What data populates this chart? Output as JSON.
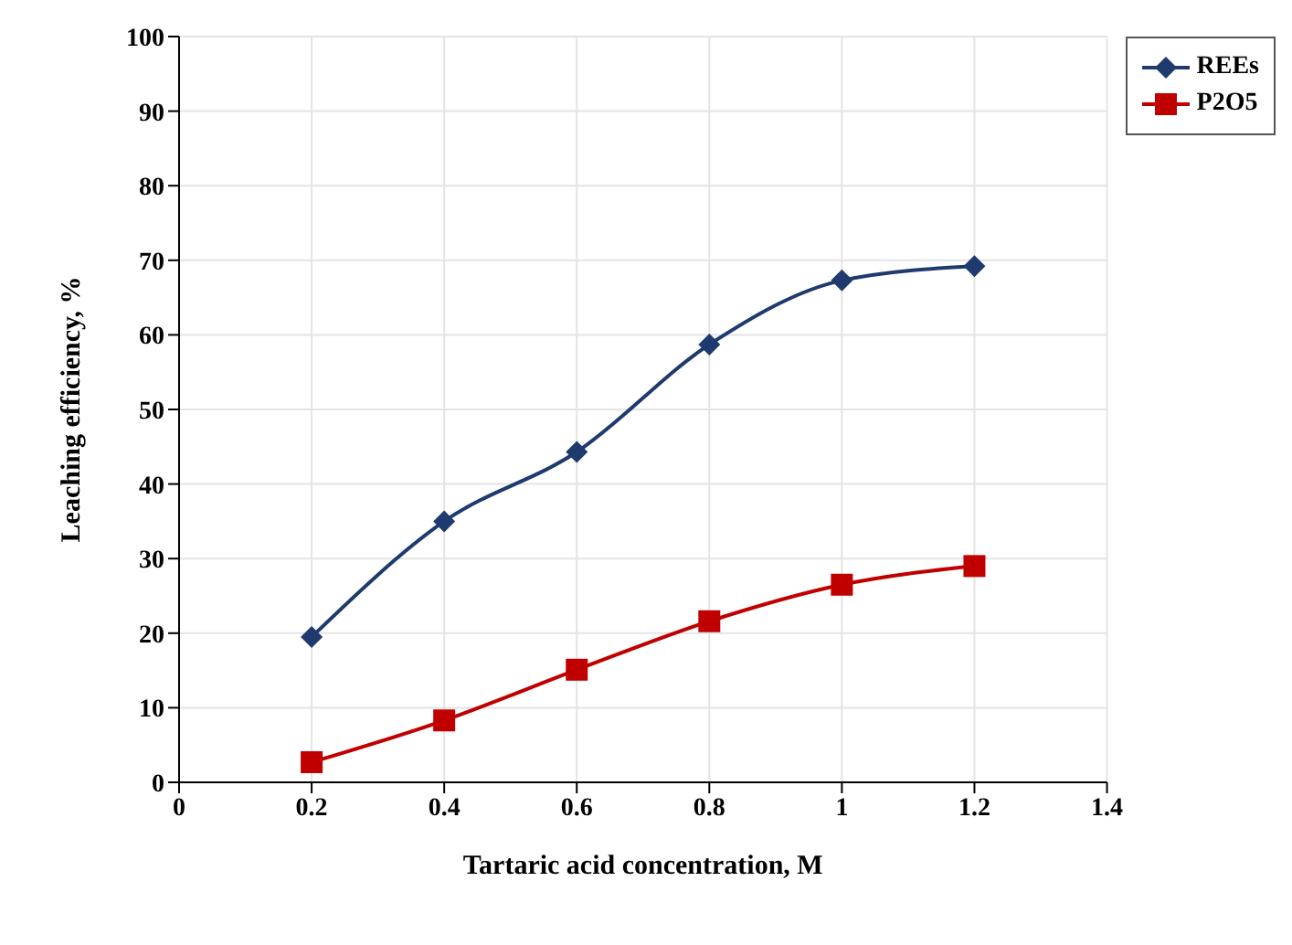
{
  "chart_data": {
    "type": "line",
    "xlabel": "Tartaric acid concentration, M",
    "ylabel": "Leaching efficiency, %",
    "x": [
      0.2,
      0.4,
      0.6,
      0.8,
      1,
      1.2
    ],
    "series": [
      {
        "name": "REEs",
        "color": "#1f3a6e",
        "marker": "diamond",
        "values": [
          19.5,
          35,
          44.3,
          58.7,
          67.3,
          69.2
        ]
      },
      {
        "name": "P2O5",
        "color": "#c00000",
        "marker": "square",
        "values": [
          2.7,
          8.3,
          15.1,
          21.6,
          26.5,
          29
        ]
      }
    ],
    "xlim": [
      0,
      1.4
    ],
    "xticks": [
      0,
      0.2,
      0.4,
      0.6,
      0.8,
      1,
      1.2,
      1.4
    ],
    "ylim": [
      0,
      100
    ],
    "yticks": [
      0,
      10,
      20,
      30,
      40,
      50,
      60,
      70,
      80,
      90,
      100
    ],
    "grid": true,
    "legend": "top right",
    "line_style": "solid"
  }
}
